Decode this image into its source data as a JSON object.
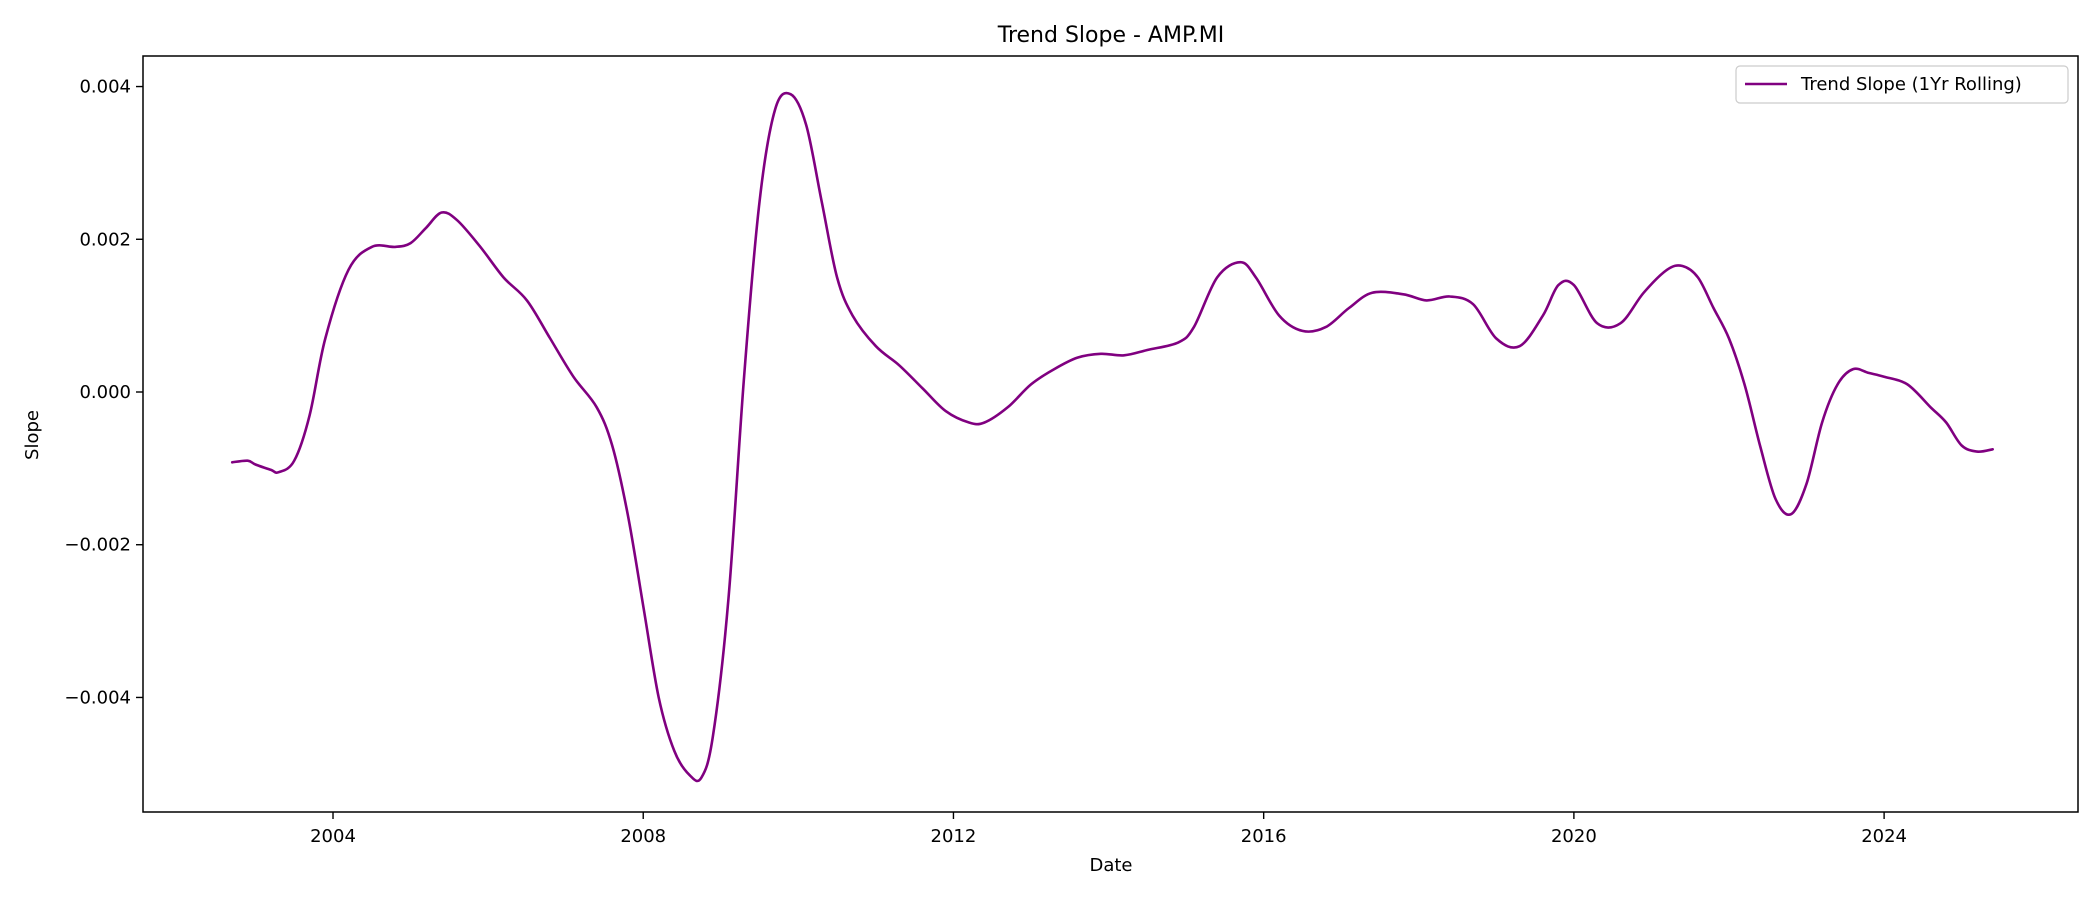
{
  "chart_data": {
    "type": "line",
    "title": "Trend Slope - AMP.MI",
    "xlabel": "Date",
    "ylabel": "Slope",
    "xlim": [
      2001.55,
      2026.5
    ],
    "ylim": [
      -0.0055,
      0.0044
    ],
    "x_ticks": [
      2004,
      2008,
      2012,
      2016,
      2020,
      2024
    ],
    "x_tick_labels": [
      "2004",
      "2008",
      "2012",
      "2016",
      "2020",
      "2024"
    ],
    "y_ticks": [
      -0.004,
      -0.002,
      0.0,
      0.002,
      0.004
    ],
    "y_tick_labels": [
      "−0.004",
      "−0.002",
      "0.000",
      "0.002",
      "0.004"
    ],
    "grid": false,
    "legend_position": "top-right",
    "series": [
      {
        "name": "Trend Slope (1Yr Rolling)",
        "color": "#800080",
        "x": [
          2002.7,
          2002.9,
          2003.0,
          2003.2,
          2003.3,
          2003.5,
          2003.7,
          2003.9,
          2004.2,
          2004.5,
          2004.8,
          2005.0,
          2005.2,
          2005.4,
          2005.6,
          2005.9,
          2006.2,
          2006.5,
          2006.8,
          2007.1,
          2007.4,
          2007.6,
          2007.8,
          2008.0,
          2008.2,
          2008.4,
          2008.6,
          2008.75,
          2008.9,
          2009.1,
          2009.3,
          2009.5,
          2009.7,
          2009.9,
          2010.1,
          2010.3,
          2010.5,
          2010.7,
          2011.0,
          2011.3,
          2011.6,
          2011.9,
          2012.2,
          2012.4,
          2012.7,
          2013.0,
          2013.3,
          2013.6,
          2013.9,
          2014.2,
          2014.5,
          2014.9,
          2015.1,
          2015.4,
          2015.7,
          2015.9,
          2016.2,
          2016.5,
          2016.8,
          2017.1,
          2017.4,
          2017.8,
          2018.1,
          2018.4,
          2018.7,
          2019.0,
          2019.3,
          2019.6,
          2019.8,
          2020.0,
          2020.3,
          2020.6,
          2020.9,
          2021.2,
          2021.4,
          2021.6,
          2021.8,
          2022.0,
          2022.2,
          2022.4,
          2022.6,
          2022.8,
          2023.0,
          2023.2,
          2023.4,
          2023.6,
          2023.8,
          2024.0,
          2024.3,
          2024.6,
          2024.8,
          2025.0,
          2025.2,
          2025.4
        ],
        "y": [
          -0.00092,
          -0.0009,
          -0.00095,
          -0.00102,
          -0.00105,
          -0.0009,
          -0.0003,
          0.0007,
          0.0016,
          0.0019,
          0.0019,
          0.00195,
          0.00215,
          0.00235,
          0.00225,
          0.0019,
          0.0015,
          0.0012,
          0.0007,
          0.0002,
          -0.0002,
          -0.0007,
          -0.0016,
          -0.0028,
          -0.004,
          -0.0047,
          -0.00502,
          -0.00505,
          -0.0045,
          -0.0027,
          0.0002,
          0.0025,
          0.0037,
          0.0039,
          0.0035,
          0.0025,
          0.0015,
          0.001,
          0.0006,
          0.00035,
          5e-05,
          -0.00025,
          -0.0004,
          -0.0004,
          -0.0002,
          0.0001,
          0.0003,
          0.00045,
          0.0005,
          0.00048,
          0.00055,
          0.00065,
          0.00085,
          0.0015,
          0.0017,
          0.0015,
          0.001,
          0.0008,
          0.00085,
          0.0011,
          0.0013,
          0.00128,
          0.0012,
          0.00125,
          0.00115,
          0.0007,
          0.0006,
          0.001,
          0.0014,
          0.0014,
          0.0009,
          0.0009,
          0.0013,
          0.0016,
          0.00165,
          0.0015,
          0.0011,
          0.0007,
          0.0001,
          -0.0007,
          -0.0014,
          -0.0016,
          -0.0012,
          -0.0004,
          0.0001,
          0.0003,
          0.00025,
          0.0002,
          0.0001,
          -0.0002,
          -0.0004,
          -0.0007,
          -0.00078,
          -0.00075
        ]
      }
    ]
  }
}
